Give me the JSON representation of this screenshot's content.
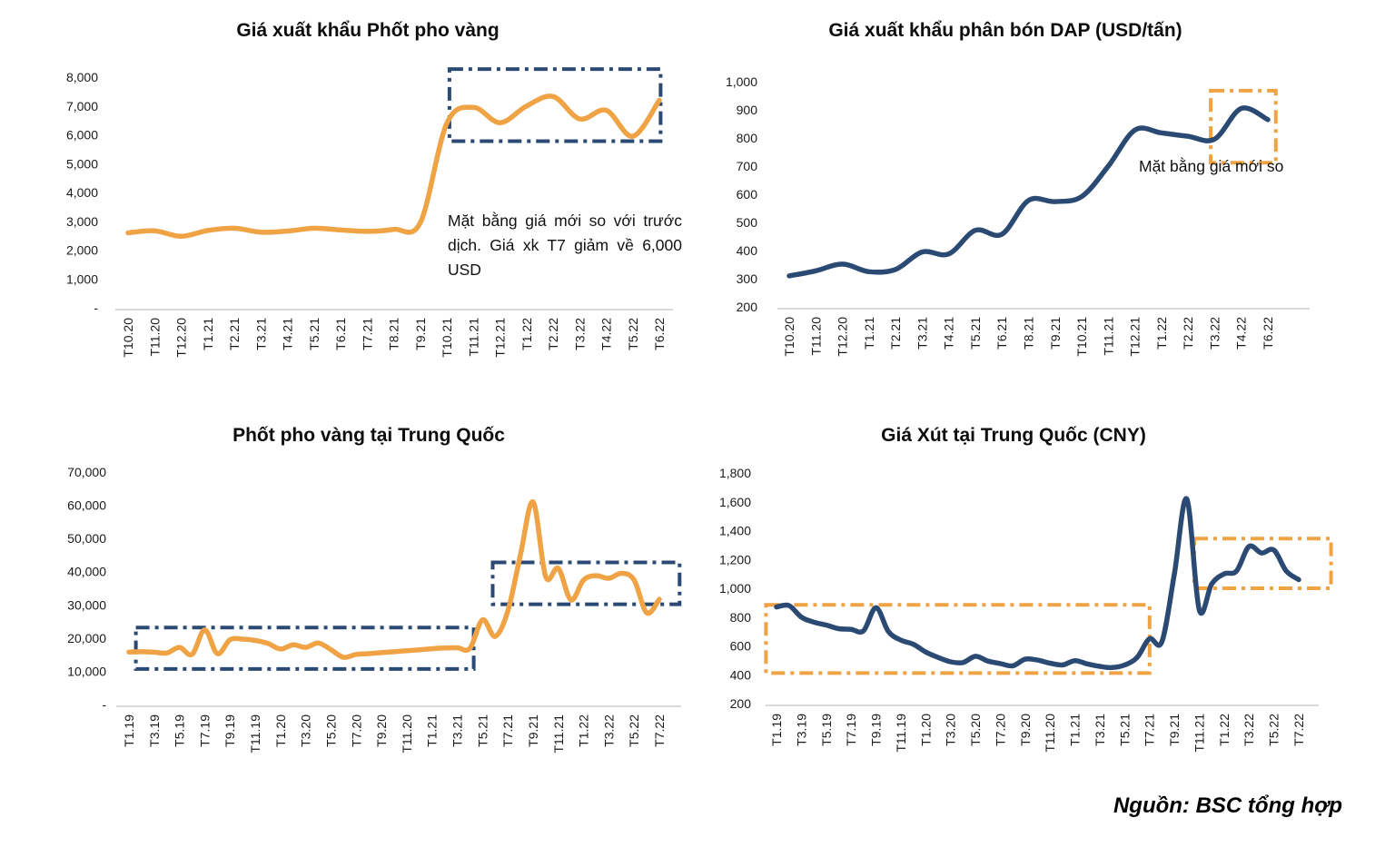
{
  "source_note": "Nguồn: BSC tổng hợp",
  "colors": {
    "orange": "#EFA345",
    "navy": "#2B4A73",
    "axis_line": "#D9D9D9",
    "tick_text": "#1A1A1A"
  },
  "chart_data": [
    {
      "id": "phot-pho-vang-export",
      "type": "line",
      "title": "Giá xuất khẩu Phốt pho vàng",
      "line_color": "#EFA345",
      "categories": [
        "T10.20",
        "T11.20",
        "T12.20",
        "T1.21",
        "T2.21",
        "T3.21",
        "T4.21",
        "T5.21",
        "T6.21",
        "T7.21",
        "T8.21",
        "T9.21",
        "T10.21",
        "T11.21",
        "T12.21",
        "T1.22",
        "T2.22",
        "T3.22",
        "T4.22",
        "T5.22",
        "T6.22"
      ],
      "values": [
        2600,
        2670,
        2480,
        2680,
        2760,
        2620,
        2660,
        2760,
        2700,
        2650,
        2720,
        2950,
        6400,
        6950,
        6420,
        7000,
        7330,
        6550,
        6850,
        5950,
        7200
      ],
      "ylim": [
        0,
        8000
      ],
      "yticks": [
        {
          "v": 8000,
          "label": "8,000"
        },
        {
          "v": 7000,
          "label": "7,000"
        },
        {
          "v": 6000,
          "label": "6,000"
        },
        {
          "v": 5000,
          "label": "5,000"
        },
        {
          "v": 4000,
          "label": "4,000"
        },
        {
          "v": 3000,
          "label": "3,000"
        },
        {
          "v": 2000,
          "label": "2,000"
        },
        {
          "v": 1000,
          "label": "1,000"
        },
        {
          "v": 0,
          "label": "-"
        }
      ],
      "xticks": [
        {
          "i": 0,
          "label": "T10.20"
        },
        {
          "i": 1,
          "label": "T11.20"
        },
        {
          "i": 2,
          "label": "T12.20"
        },
        {
          "i": 3,
          "label": "T1.21"
        },
        {
          "i": 4,
          "label": "T2.21"
        },
        {
          "i": 5,
          "label": "T3.21"
        },
        {
          "i": 6,
          "label": "T4.21"
        },
        {
          "i": 7,
          "label": "T5.21"
        },
        {
          "i": 8,
          "label": "T6.21"
        },
        {
          "i": 9,
          "label": "T7.21"
        },
        {
          "i": 10,
          "label": "T8.21"
        },
        {
          "i": 11,
          "label": "T9.21"
        },
        {
          "i": 12,
          "label": "T10.21"
        },
        {
          "i": 13,
          "label": "T11.21"
        },
        {
          "i": 14,
          "label": "T12.21"
        },
        {
          "i": 15,
          "label": "T1.22"
        },
        {
          "i": 16,
          "label": "T2.22"
        },
        {
          "i": 17,
          "label": "T3.22"
        },
        {
          "i": 18,
          "label": "T4.22"
        },
        {
          "i": 19,
          "label": "T5.22"
        },
        {
          "i": 20,
          "label": "T6.22"
        }
      ],
      "highlight_boxes": [
        {
          "i0": 12.1,
          "i1": 20.05,
          "v0": 5780,
          "v1": 8280,
          "color": "#2B4A73"
        }
      ],
      "annotation": {
        "lines": [
          "Mặt bằng giá mới so với trước",
          "dịch. Giá xk T7 giảm về 6,000 USD"
        ]
      }
    },
    {
      "id": "dap-export",
      "type": "line",
      "title": "Giá xuất khẩu phân bón DAP (USD/tấn)",
      "line_color": "#2B4A73",
      "categories": [
        "T10.20",
        "T11.20",
        "T12.20",
        "T1.21",
        "T2.21",
        "T3.21",
        "T4.21",
        "T5.21",
        "T6.21",
        "T8.21",
        "T9.21",
        "T10.21",
        "T11.21",
        "T12.21",
        "T1.22",
        "T2.22",
        "T3.22",
        "T4.22",
        "T6.22"
      ],
      "values": [
        310,
        328,
        352,
        325,
        333,
        395,
        388,
        472,
        458,
        578,
        574,
        592,
        700,
        828,
        818,
        806,
        796,
        905,
        865
      ],
      "ylim": [
        200,
        1000
      ],
      "yticks": [
        {
          "v": 1000,
          "label": "1,000"
        },
        {
          "v": 900,
          "label": "900"
        },
        {
          "v": 800,
          "label": "800"
        },
        {
          "v": 700,
          "label": "700"
        },
        {
          "v": 600,
          "label": "600"
        },
        {
          "v": 500,
          "label": "500"
        },
        {
          "v": 400,
          "label": "400"
        },
        {
          "v": 300,
          "label": "300"
        },
        {
          "v": 200,
          "label": "200"
        }
      ],
      "xticks": [
        {
          "i": 0,
          "label": "T10.20"
        },
        {
          "i": 1,
          "label": "T11.20"
        },
        {
          "i": 2,
          "label": "T12.20"
        },
        {
          "i": 3,
          "label": "T1.21"
        },
        {
          "i": 4,
          "label": "T2.21"
        },
        {
          "i": 5,
          "label": "T3.21"
        },
        {
          "i": 6,
          "label": "T4.21"
        },
        {
          "i": 7,
          "label": "T5.21"
        },
        {
          "i": 8,
          "label": "T6.21"
        },
        {
          "i": 9,
          "label": "T8.21"
        },
        {
          "i": 10,
          "label": "T9.21"
        },
        {
          "i": 11,
          "label": "T10.21"
        },
        {
          "i": 12,
          "label": "T11.21"
        },
        {
          "i": 13,
          "label": "T12.21"
        },
        {
          "i": 14,
          "label": "T1.22"
        },
        {
          "i": 15,
          "label": "T2.22"
        },
        {
          "i": 16,
          "label": "T3.22"
        },
        {
          "i": 17,
          "label": "T4.22"
        },
        {
          "i": 18,
          "label": "T6.22"
        }
      ],
      "highlight_boxes": [
        {
          "i0": 15.85,
          "i1": 18.3,
          "v0": 712,
          "v1": 968,
          "color": "#EFA345"
        }
      ],
      "annotation": {
        "lines": [
          "Mặt bằng giá mới so"
        ]
      }
    },
    {
      "id": "phot-pho-vang-china",
      "type": "line",
      "title": "Phốt pho vàng tại Trung Quốc",
      "line_color": "#EFA345",
      "categories": [
        "T1.19",
        "T2.19",
        "T3.19",
        "T4.19",
        "T5.19",
        "T6.19",
        "T7.19",
        "T8.19",
        "T9.19",
        "T10.19",
        "T11.19",
        "T12.19",
        "T1.20",
        "T2.20",
        "T3.20",
        "T4.20",
        "T5.20",
        "T6.20",
        "T7.20",
        "T8.20",
        "T9.20",
        "T10.20",
        "T11.20",
        "T12.20",
        "T1.21",
        "T2.21",
        "T3.21",
        "T4.21",
        "T5.21",
        "T6.21",
        "T7.21",
        "T8.21",
        "T9.21",
        "T10.21",
        "T11.21",
        "T12.21",
        "T1.22",
        "T2.22",
        "T3.22",
        "T4.22",
        "T5.22",
        "T6.22",
        "T7.22"
      ],
      "values": [
        15800,
        15900,
        15750,
        15500,
        17200,
        15100,
        22500,
        15300,
        19500,
        19700,
        19300,
        18400,
        16700,
        18000,
        17200,
        18500,
        16500,
        14200,
        15100,
        15300,
        15600,
        15900,
        16200,
        16500,
        16800,
        17000,
        17100,
        16900,
        25500,
        20500,
        28100,
        45000,
        61000,
        38500,
        41000,
        31500,
        37500,
        38800,
        38000,
        39500,
        37500,
        27600,
        31700
      ],
      "ylim": [
        0,
        70000
      ],
      "yticks": [
        {
          "v": 70000,
          "label": "70,000"
        },
        {
          "v": 60000,
          "label": "60,000"
        },
        {
          "v": 50000,
          "label": "50,000"
        },
        {
          "v": 40000,
          "label": "40,000"
        },
        {
          "v": 30000,
          "label": "30,000"
        },
        {
          "v": 20000,
          "label": "20,000"
        },
        {
          "v": 10000,
          "label": "10,000"
        },
        {
          "v": 0,
          "label": "-"
        }
      ],
      "xticks": [
        {
          "i": 0,
          "label": "T1.19"
        },
        {
          "i": 2,
          "label": "T3.19"
        },
        {
          "i": 4,
          "label": "T5.19"
        },
        {
          "i": 6,
          "label": "T7.19"
        },
        {
          "i": 8,
          "label": "T9.19"
        },
        {
          "i": 10,
          "label": "T11.19"
        },
        {
          "i": 12,
          "label": "T1.20"
        },
        {
          "i": 14,
          "label": "T3.20"
        },
        {
          "i": 16,
          "label": "T5.20"
        },
        {
          "i": 18,
          "label": "T7.20"
        },
        {
          "i": 20,
          "label": "T9.20"
        },
        {
          "i": 22,
          "label": "T11.20"
        },
        {
          "i": 24,
          "label": "T1.21"
        },
        {
          "i": 26,
          "label": "T3.21"
        },
        {
          "i": 28,
          "label": "T5.21"
        },
        {
          "i": 30,
          "label": "T7.21"
        },
        {
          "i": 32,
          "label": "T9.21"
        },
        {
          "i": 34,
          "label": "T11.21"
        },
        {
          "i": 36,
          "label": "T1.22"
        },
        {
          "i": 38,
          "label": "T3.22"
        },
        {
          "i": 40,
          "label": "T5.22"
        },
        {
          "i": 42,
          "label": "T7.22"
        }
      ],
      "highlight_boxes": [
        {
          "i0": 0.55,
          "i1": 27.3,
          "v0": 10700,
          "v1": 23200,
          "color": "#2B4A73"
        },
        {
          "i0": 28.8,
          "i1": 43.6,
          "v0": 30200,
          "v1": 42800,
          "color": "#2B4A73"
        }
      ],
      "annotation": {
        "lines": []
      }
    },
    {
      "id": "xut-china",
      "type": "line",
      "title": "Giá Xút tại Trung Quốc (CNY)",
      "line_color": "#2B4A73",
      "categories": [
        "T1.19",
        "T2.19",
        "T3.19",
        "T4.19",
        "T5.19",
        "T6.19",
        "T7.19",
        "T8.19",
        "T9.19",
        "T10.19",
        "T11.19",
        "T12.19",
        "T1.20",
        "T2.20",
        "T3.20",
        "T4.20",
        "T5.20",
        "T6.20",
        "T7.20",
        "T8.20",
        "T9.20",
        "T10.20",
        "T11.20",
        "T12.20",
        "T1.21",
        "T2.21",
        "T3.21",
        "T4.21",
        "T5.21",
        "T6.21",
        "T7.21",
        "T8.21",
        "T9.21",
        "T10.21",
        "T11.21",
        "T12.21",
        "T1.22",
        "T2.22",
        "T3.22",
        "T4.22",
        "T5.22",
        "T6.22",
        "T7.22"
      ],
      "values": [
        870,
        880,
        800,
        765,
        745,
        720,
        715,
        705,
        865,
        700,
        640,
        612,
        558,
        520,
        490,
        485,
        528,
        495,
        478,
        462,
        508,
        502,
        480,
        468,
        498,
        475,
        458,
        450,
        468,
        520,
        650,
        630,
        1100,
        1620,
        850,
        1030,
        1100,
        1120,
        1290,
        1245,
        1265,
        1120,
        1060
      ],
      "ylim": [
        200,
        1800
      ],
      "yticks": [
        {
          "v": 1800,
          "label": "1,800"
        },
        {
          "v": 1600,
          "label": "1,600"
        },
        {
          "v": 1400,
          "label": "1,400"
        },
        {
          "v": 1200,
          "label": "1,200"
        },
        {
          "v": 1000,
          "label": "1,000"
        },
        {
          "v": 800,
          "label": "800"
        },
        {
          "v": 600,
          "label": "600"
        },
        {
          "v": 400,
          "label": "400"
        },
        {
          "v": 200,
          "label": "200"
        }
      ],
      "xticks": [
        {
          "i": 0,
          "label": "T1.19"
        },
        {
          "i": 2,
          "label": "T3.19"
        },
        {
          "i": 4,
          "label": "T5.19"
        },
        {
          "i": 6,
          "label": "T7.19"
        },
        {
          "i": 8,
          "label": "T9.19"
        },
        {
          "i": 10,
          "label": "T11.19"
        },
        {
          "i": 12,
          "label": "T1.20"
        },
        {
          "i": 14,
          "label": "T3.20"
        },
        {
          "i": 16,
          "label": "T5.20"
        },
        {
          "i": 18,
          "label": "T7.20"
        },
        {
          "i": 20,
          "label": "T9.20"
        },
        {
          "i": 22,
          "label": "T11.20"
        },
        {
          "i": 24,
          "label": "T1.21"
        },
        {
          "i": 26,
          "label": "T3.21"
        },
        {
          "i": 28,
          "label": "T5.21"
        },
        {
          "i": 30,
          "label": "T7.21"
        },
        {
          "i": 32,
          "label": "T9.21"
        },
        {
          "i": 34,
          "label": "T11.21"
        },
        {
          "i": 36,
          "label": "T1.22"
        },
        {
          "i": 38,
          "label": "T3.22"
        },
        {
          "i": 40,
          "label": "T5.22"
        },
        {
          "i": 42,
          "label": "T7.22"
        }
      ],
      "highlight_boxes": [
        {
          "i0": -0.85,
          "i1": 30.0,
          "v0": 412,
          "v1": 885,
          "color": "#EFA345"
        },
        {
          "i0": 33.6,
          "i1": 44.6,
          "v0": 1000,
          "v1": 1345,
          "color": "#EFA345"
        }
      ],
      "annotation": {
        "lines": []
      }
    }
  ]
}
